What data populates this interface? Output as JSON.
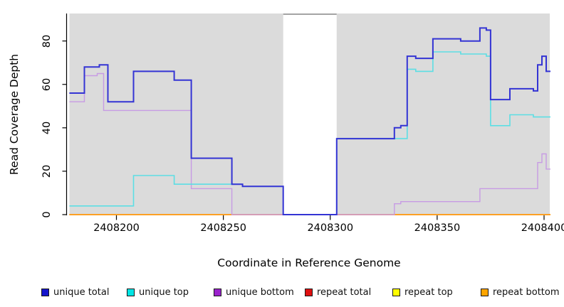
{
  "figure": {
    "background": "#ffffff",
    "panel_background": "#dbdbdb",
    "axis_color": "#000000"
  },
  "chart_data": {
    "type": "line",
    "subtype": "step-coverage-plot",
    "title": "",
    "xlabel": "Coordinate in Reference Genome",
    "ylabel": "Read Coverage Depth",
    "xlim": [
      2408178,
      2408403
    ],
    "ylim": [
      0,
      92
    ],
    "grid": false,
    "legend_position": "bottom",
    "x_ticks": [
      2408200,
      2408250,
      2408300,
      2408350,
      2408400
    ],
    "y_ticks": [
      0,
      20,
      40,
      60,
      80
    ],
    "masked_region": {
      "x_start": 2408278,
      "x_end": 2408303,
      "fill": "#ffffff",
      "top_border_color": "#8c8c8c"
    },
    "series": [
      {
        "name": "repeat total",
        "color": "#dd2222",
        "line_width": 1.4,
        "points": [
          [
            2408178,
            0
          ]
        ]
      },
      {
        "name": "repeat top",
        "color": "#f2f220",
        "line_width": 1.4,
        "points": [
          [
            2408178,
            0
          ]
        ]
      },
      {
        "name": "repeat bottom",
        "color": "#ff9d1e",
        "line_width": 1.8,
        "points": [
          [
            2408178,
            0
          ]
        ]
      },
      {
        "name": "unique bottom",
        "color": "#c79be4",
        "line_width": 1.4,
        "points": [
          [
            2408178,
            52
          ],
          [
            2408185,
            64
          ],
          [
            2408191,
            65
          ],
          [
            2408194,
            48
          ],
          [
            2408235,
            12
          ],
          [
            2408254,
            0
          ],
          [
            2408330,
            5
          ],
          [
            2408333,
            6
          ],
          [
            2408370,
            12
          ],
          [
            2408397,
            24
          ],
          [
            2408399,
            28
          ],
          [
            2408401,
            21
          ]
        ]
      },
      {
        "name": "unique top",
        "color": "#5cdee4",
        "line_width": 1.6,
        "points": [
          [
            2408178,
            4
          ],
          [
            2408208,
            18
          ],
          [
            2408227,
            14
          ],
          [
            2408259,
            13
          ],
          [
            2408278,
            0
          ],
          [
            2408303,
            35
          ],
          [
            2408336,
            67
          ],
          [
            2408340,
            66
          ],
          [
            2408348,
            75
          ],
          [
            2408361,
            74
          ],
          [
            2408373,
            73
          ],
          [
            2408375,
            41
          ],
          [
            2408384,
            46
          ],
          [
            2408395,
            45
          ]
        ]
      },
      {
        "name": "unique total",
        "color": "#3434d4",
        "line_width": 2,
        "points": [
          [
            2408178,
            56
          ],
          [
            2408185,
            68
          ],
          [
            2408192,
            69
          ],
          [
            2408196,
            52
          ],
          [
            2408208,
            66
          ],
          [
            2408227,
            62
          ],
          [
            2408235,
            26
          ],
          [
            2408254,
            14
          ],
          [
            2408259,
            13
          ],
          [
            2408278,
            0
          ],
          [
            2408303,
            35
          ],
          [
            2408330,
            40
          ],
          [
            2408333,
            41
          ],
          [
            2408336,
            73
          ],
          [
            2408340,
            72
          ],
          [
            2408348,
            81
          ],
          [
            2408361,
            80
          ],
          [
            2408370,
            86
          ],
          [
            2408373,
            85
          ],
          [
            2408375,
            53
          ],
          [
            2408384,
            58
          ],
          [
            2408395,
            57
          ],
          [
            2408397,
            69
          ],
          [
            2408399,
            73
          ],
          [
            2408401,
            66
          ]
        ]
      }
    ],
    "legend": [
      {
        "label": "unique total",
        "swatch": "#1414cc"
      },
      {
        "label": "unique top",
        "swatch": "#00e5e5"
      },
      {
        "label": "unique bottom",
        "swatch": "#9a22cc"
      },
      {
        "label": "repeat total",
        "swatch": "#df1010"
      },
      {
        "label": "repeat top",
        "swatch": "#ffff00"
      },
      {
        "label": "repeat bottom",
        "swatch": "#ffa500"
      }
    ]
  }
}
